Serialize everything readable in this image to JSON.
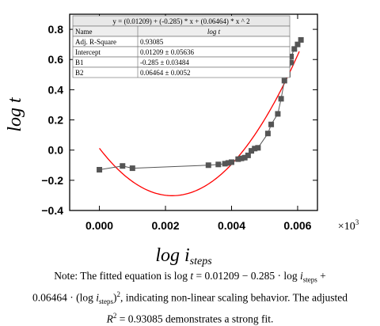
{
  "chart_data": {
    "type": "scatter",
    "xlabel": "log i",
    "xlabel_sub": "steps",
    "ylabel": "log t",
    "x_multiplier": "×10",
    "x_multiplier_exp": "3",
    "xlim": [
      -0.0009,
      0.0066
    ],
    "ylim": [
      -0.4,
      0.9
    ],
    "x_ticks": [
      0.0,
      0.002,
      0.004,
      0.006
    ],
    "x_tick_labels": [
      "0.000",
      "0.002",
      "0.004",
      "0.006"
    ],
    "y_ticks": [
      -0.4,
      -0.2,
      0.0,
      0.2,
      0.4,
      0.6,
      0.8
    ],
    "y_tick_labels": [
      "−0.4",
      "−0.2",
      "0.0",
      "0.2",
      "0.4",
      "0.6",
      "0.8"
    ],
    "grid": false,
    "series": [
      {
        "name": "data",
        "style": "square-markers-with-line",
        "color": "#555555",
        "points": [
          [
            0.0,
            -0.13
          ],
          [
            0.0007,
            -0.105
          ],
          [
            0.001,
            -0.12
          ],
          [
            0.0033,
            -0.1
          ],
          [
            0.0036,
            -0.095
          ],
          [
            0.0038,
            -0.09
          ],
          [
            0.0039,
            -0.085
          ],
          [
            0.004,
            -0.08
          ],
          [
            0.0042,
            -0.06
          ],
          [
            0.0043,
            -0.055
          ],
          [
            0.0044,
            -0.05
          ],
          [
            0.0045,
            -0.035
          ],
          [
            0.0046,
            -0.005
          ],
          [
            0.0047,
            0.01
          ],
          [
            0.0048,
            0.015
          ],
          [
            0.0051,
            0.11
          ],
          [
            0.0052,
            0.17
          ],
          [
            0.0054,
            0.24
          ],
          [
            0.0055,
            0.34
          ],
          [
            0.0056,
            0.46
          ],
          [
            0.0057,
            0.5
          ],
          [
            0.0058,
            0.58
          ],
          [
            0.0058,
            0.62
          ],
          [
            0.0059,
            0.67
          ],
          [
            0.006,
            0.7
          ],
          [
            0.0061,
            0.73
          ]
        ]
      },
      {
        "name": "fit",
        "style": "curve",
        "color": "#ff0000",
        "x_range": [
          0.0,
          0.00605
        ],
        "coefficients": {
          "intercept": 0.01209,
          "b1": -285,
          "b2": 64640
        }
      }
    ],
    "table": {
      "equation": "y = (0.01209) + (-0.285) * x + (0.06464) * x ^ 2",
      "header": [
        "Name",
        "log t"
      ],
      "rows": [
        [
          "Adj. R-Square",
          "0.93085"
        ],
        [
          "Intercept",
          "0.01209 ± 0.05636"
        ],
        [
          "B1",
          "-0.285 ± 0.03484"
        ],
        [
          "B2",
          "0.06464 ± 0.0052"
        ]
      ]
    }
  },
  "caption": {
    "line1_pre": "Note: The fitted equation is log ",
    "line1_t": "t",
    "line1_mid": " = 0.01209 −  0.285 · log ",
    "line1_i": "i",
    "line1_sub": "steps",
    "line1_post": " +",
    "line2_pre": "0.06464 · (log ",
    "line2_i": "i",
    "line2_sub": "steps",
    "line2_paren": ")",
    "line2_sup": "2",
    "line2_post": ", indicating non-linear scaling behavior. The adjusted",
    "line3_r": "R",
    "line3_sup": "2",
    "line3_post": " = 0.93085 demonstrates a strong fit."
  }
}
